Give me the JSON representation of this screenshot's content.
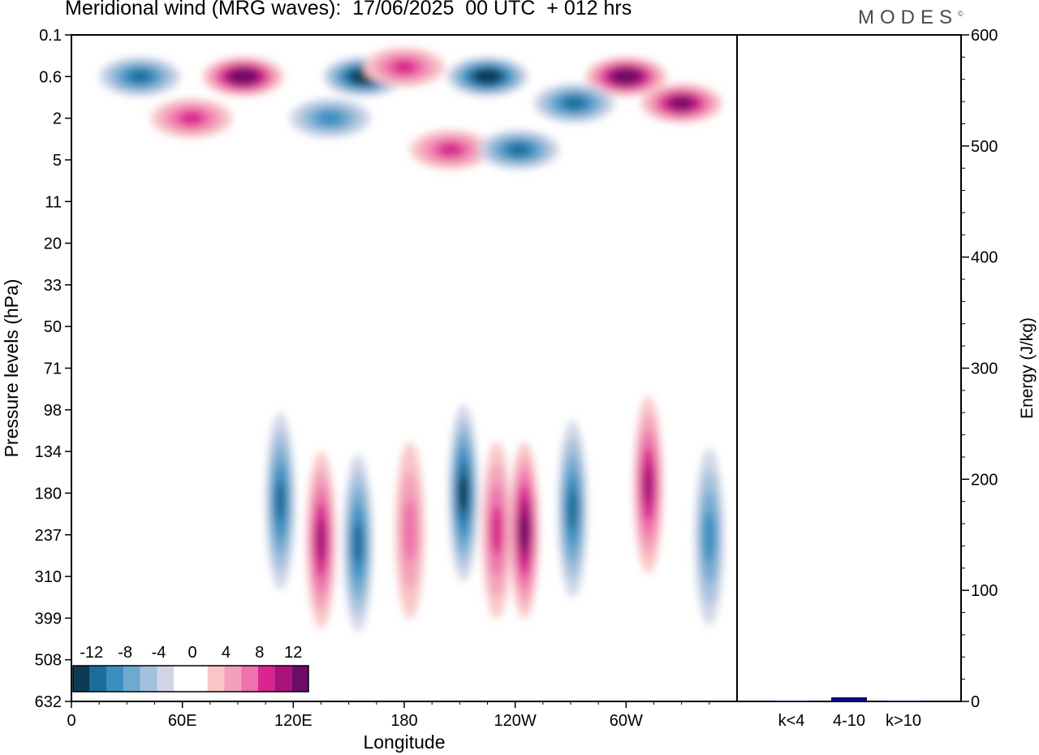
{
  "title": "Meridional wind (MRG waves):  17/06/2025  00 UTC  + 012 hrs",
  "logo": "MODES",
  "logo_mark": "©",
  "chart_data": [
    {
      "type": "heatmap",
      "title": "Meridional wind (MRG waves):  17/06/2025  00 UTC  + 012 hrs",
      "xlabel": "Longitude",
      "ylabel": "Pressure levels (hPa)",
      "x_ticks": [
        "0",
        "60E",
        "120E",
        "180",
        "120W",
        "60W"
      ],
      "y_ticks": [
        "0.1",
        "0.6",
        "2",
        "5",
        "11",
        "20",
        "33",
        "50",
        "71",
        "98",
        "134",
        "180",
        "237",
        "310",
        "399",
        "508",
        "632"
      ],
      "colorbar": {
        "labels": [
          "-12",
          "-8",
          "-4",
          "0",
          "4",
          "8",
          "12"
        ],
        "colors": [
          "#0c3a55",
          "#1c6e9a",
          "#3a8fc0",
          "#6ea9cf",
          "#a3c0dc",
          "#cfd5e7",
          "#ffffff",
          "#ffffff",
          "#f8c6c6",
          "#f3a0bb",
          "#ee72ab",
          "#d8268e",
          "#a8137a",
          "#6e0b66"
        ]
      },
      "features": [
        {
          "lon": 37,
          "lev": 0.6,
          "value": -10
        },
        {
          "lon": 93,
          "lev": 0.6,
          "value": 14
        },
        {
          "lon": 158,
          "lev": 0.6,
          "value": -14
        },
        {
          "lon": 180,
          "lev": 0.4,
          "value": 8
        },
        {
          "lon": 225,
          "lev": 0.6,
          "value": -14
        },
        {
          "lon": 300,
          "lev": 0.6,
          "value": 14
        },
        {
          "lon": 272,
          "lev": 1.3,
          "value": -10
        },
        {
          "lon": 330,
          "lev": 1.3,
          "value": 12
        },
        {
          "lon": 65,
          "lev": 2,
          "value": 8
        },
        {
          "lon": 140,
          "lev": 2,
          "value": -8
        },
        {
          "lon": 205,
          "lev": 4,
          "value": 8
        },
        {
          "lon": 242,
          "lev": 4,
          "value": -10
        },
        {
          "lon": 113,
          "lev": 190,
          "value": -10
        },
        {
          "lon": 135,
          "lev": 245,
          "value": 10
        },
        {
          "lon": 155,
          "lev": 250,
          "value": -10
        },
        {
          "lon": 183,
          "lev": 230,
          "value": 6
        },
        {
          "lon": 212,
          "lev": 180,
          "value": -12
        },
        {
          "lon": 230,
          "lev": 230,
          "value": 8
        },
        {
          "lon": 245,
          "lev": 230,
          "value": 12
        },
        {
          "lon": 271,
          "lev": 200,
          "value": -10
        },
        {
          "lon": 312,
          "lev": 170,
          "value": 10
        },
        {
          "lon": 345,
          "lev": 240,
          "value": -8
        }
      ]
    },
    {
      "type": "bar",
      "categories": [
        "k<4",
        "4-10",
        "k>10"
      ],
      "values": [
        0,
        3,
        0
      ],
      "ylabel": "Energy (J/kg)",
      "ylim": [
        0,
        600
      ],
      "y_ticks": [
        "0",
        "100",
        "200",
        "300",
        "400",
        "500",
        "600"
      ],
      "bar_color": "#0a0a80"
    }
  ]
}
